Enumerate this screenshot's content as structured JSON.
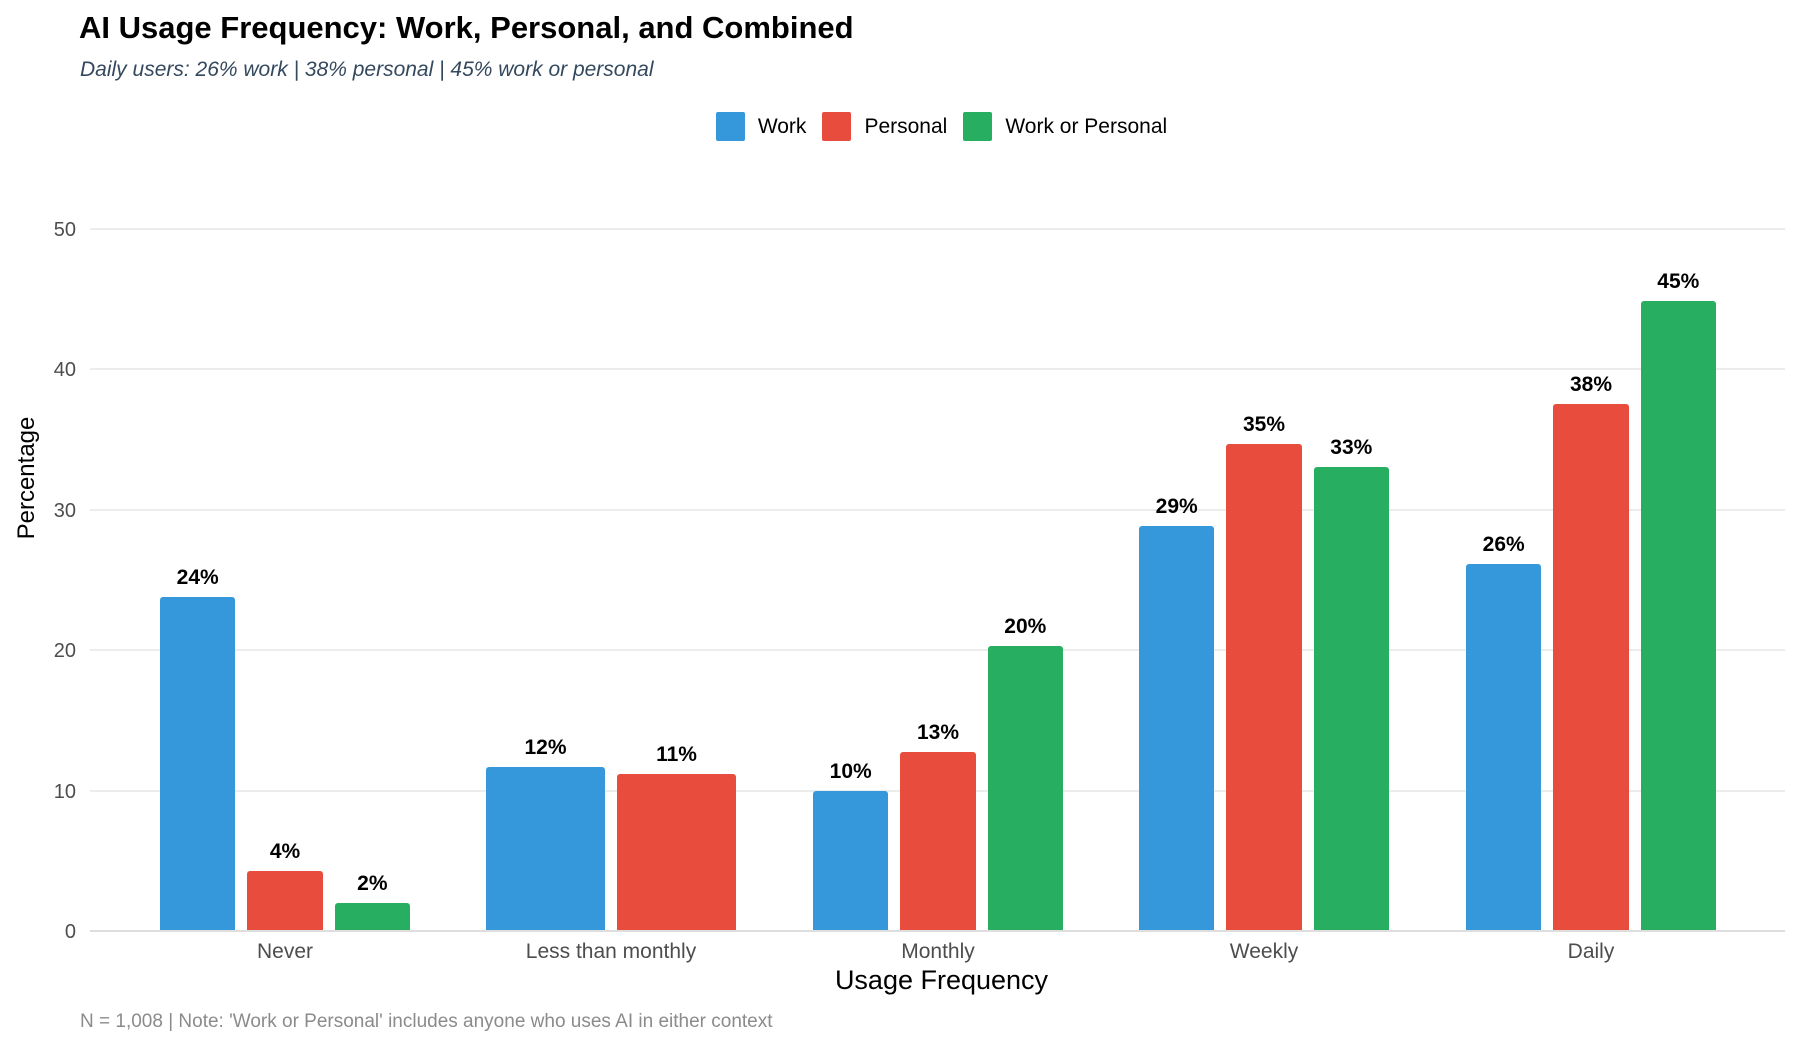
{
  "header": {
    "title": "AI Usage Frequency: Work, Personal, and Combined",
    "subtitle": "Daily users: 26% work | 38% personal | 45% work or personal"
  },
  "footnote": "N = 1,008 | Note: 'Work or Personal' includes anyone who uses AI in either context",
  "colors": {
    "work": "#3498db",
    "personal": "#e74c3c",
    "work_or_personal": "#27ae60",
    "subtitle_text": "#34495e",
    "axis_text": "#4d4d4d",
    "footnote_text": "#8b8b8b",
    "gridline": "#ececec"
  },
  "chart_data": {
    "type": "bar",
    "title": "AI Usage Frequency: Work, Personal, and Combined",
    "subtitle": "Daily users: 26% work | 38% personal | 45% work or personal",
    "xlabel": "Usage Frequency",
    "ylabel": "Percentage",
    "ylim": [
      0,
      50
    ],
    "yticks": [
      0,
      10,
      20,
      30,
      40,
      50
    ],
    "grid": "horizontal-major-only",
    "legend_position": "top-center",
    "categories": [
      "Never",
      "Less than monthly",
      "Monthly",
      "Weekly",
      "Daily"
    ],
    "series": [
      {
        "name": "Work",
        "color": "#3498db",
        "values": [
          23.7,
          11.6,
          9.9,
          28.8,
          26.1
        ],
        "labels": [
          "24%",
          "12%",
          "10%",
          "29%",
          "26%"
        ]
      },
      {
        "name": "Personal",
        "color": "#e74c3c",
        "values": [
          4.2,
          11.1,
          12.7,
          34.6,
          37.5
        ],
        "labels": [
          "4%",
          "11%",
          "13%",
          "35%",
          "38%"
        ]
      },
      {
        "name": "Work or Personal",
        "color": "#27ae60",
        "values": [
          1.9,
          null,
          20.2,
          33.0,
          44.8
        ],
        "labels": [
          "2%",
          null,
          "20%",
          "33%",
          "45%"
        ]
      }
    ]
  }
}
